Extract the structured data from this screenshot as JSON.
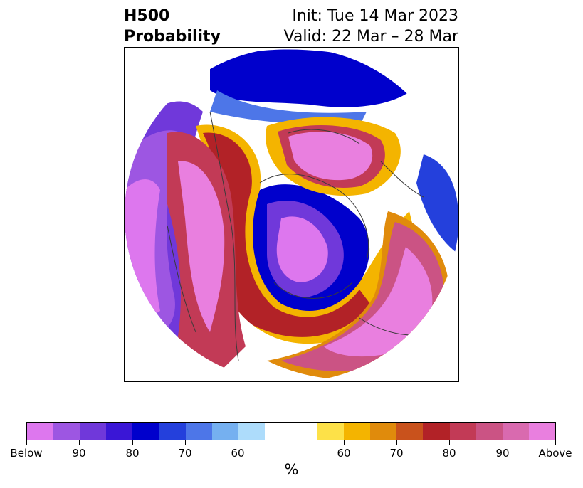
{
  "title": {
    "left_line1": "H500",
    "left_line2": "Probability",
    "right_line1": "Init: Tue 14 Mar 2023",
    "right_line2": "Valid: 22 Mar – 28 Mar"
  },
  "colorbar": {
    "colors": [
      "#dd77ee",
      "#9d56e2",
      "#7038da",
      "#3a16d6",
      "#0000cc",
      "#2440dc",
      "#4d76e8",
      "#75b0f0",
      "#addcfb",
      "#ffffff",
      "#ffffff",
      "#fde148",
      "#f4b400",
      "#e08b0c",
      "#c9521c",
      "#b22227",
      "#c23a56",
      "#cb5384",
      "#d96aaf",
      "#e97fdf"
    ],
    "ticks": [
      {
        "label": "Below",
        "frac": 0.0
      },
      {
        "label": "90",
        "frac": 0.1
      },
      {
        "label": "80",
        "frac": 0.2
      },
      {
        "label": "70",
        "frac": 0.3
      },
      {
        "label": "60",
        "frac": 0.4
      },
      {
        "label": "60",
        "frac": 0.6
      },
      {
        "label": "70",
        "frac": 0.7
      },
      {
        "label": "80",
        "frac": 0.8
      },
      {
        "label": "90",
        "frac": 0.9
      },
      {
        "label": "Above",
        "frac": 1.0
      }
    ],
    "unit_label": "%"
  }
}
